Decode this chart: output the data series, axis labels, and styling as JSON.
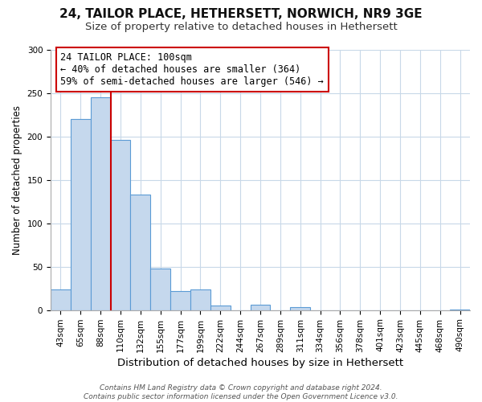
{
  "title1": "24, TAILOR PLACE, HETHERSETT, NORWICH, NR9 3GE",
  "title2": "Size of property relative to detached houses in Hethersett",
  "xlabel": "Distribution of detached houses by size in Hethersett",
  "ylabel": "Number of detached properties",
  "bar_labels": [
    "43sqm",
    "65sqm",
    "88sqm",
    "110sqm",
    "132sqm",
    "155sqm",
    "177sqm",
    "199sqm",
    "222sqm",
    "244sqm",
    "267sqm",
    "289sqm",
    "311sqm",
    "334sqm",
    "356sqm",
    "378sqm",
    "401sqm",
    "423sqm",
    "445sqm",
    "468sqm",
    "490sqm"
  ],
  "bar_values": [
    24,
    220,
    245,
    196,
    133,
    48,
    22,
    24,
    5,
    0,
    6,
    0,
    3,
    0,
    0,
    0,
    0,
    0,
    0,
    0,
    1
  ],
  "bar_color": "#c5d8ed",
  "bar_edge_color": "#5b9bd5",
  "vline_color": "#cc0000",
  "annotation_text": "24 TAILOR PLACE: 100sqm\n← 40% of detached houses are smaller (364)\n59% of semi-detached houses are larger (546) →",
  "annotation_box_color": "#ffffff",
  "annotation_box_edge": "#cc0000",
  "ylim": [
    0,
    300
  ],
  "yticks": [
    0,
    50,
    100,
    150,
    200,
    250,
    300
  ],
  "footer": "Contains HM Land Registry data © Crown copyright and database right 2024.\nContains public sector information licensed under the Open Government Licence v3.0.",
  "grid_color": "#c8d8e8",
  "bg_color": "#ffffff",
  "title1_fontsize": 11,
  "title2_fontsize": 9.5,
  "xlabel_fontsize": 9.5,
  "ylabel_fontsize": 8.5,
  "tick_fontsize": 7.5,
  "annot_fontsize": 8.5,
  "footer_fontsize": 6.5
}
